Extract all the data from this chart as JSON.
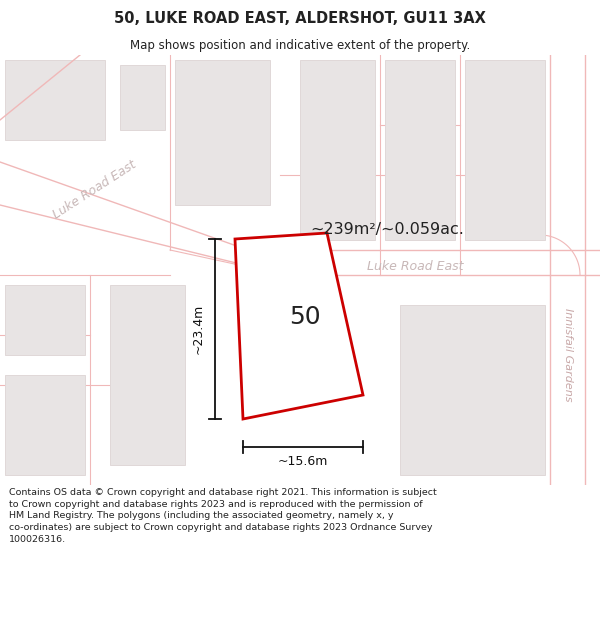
{
  "title_line1": "50, LUKE ROAD EAST, ALDERSHOT, GU11 3AX",
  "title_line2": "Map shows position and indicative extent of the property.",
  "area_text": "~239m²/~0.059ac.",
  "property_number": "50",
  "dim_width": "~15.6m",
  "dim_height": "~23.4m",
  "road_label_diag": "Luke Road East",
  "road_label_horiz": "Luke Road East",
  "street_label": "Innisfail Gardens",
  "footer_text": "Contains OS data © Crown copyright and database right 2021. This information is subject to Crown copyright and database rights 2023 and is reproduced with the permission of HM Land Registry. The polygons (including the associated geometry, namely x, y co-ordinates) are subject to Crown copyright and database rights 2023 Ordnance Survey 100026316.",
  "map_bg": "#f7f5f5",
  "road_color": "#ffffff",
  "road_border_color": "#f0b8b8",
  "building_fill": "#e8e4e4",
  "building_border": "#e0d8d8",
  "property_fill": "#ffffff",
  "property_border": "#cc0000",
  "dim_color": "#111111",
  "text_color": "#222222",
  "road_text_color": "#c8b8b8",
  "street_text_color": "#c8a8a8",
  "area_text_color": "#222222",
  "title_color": "#222222"
}
